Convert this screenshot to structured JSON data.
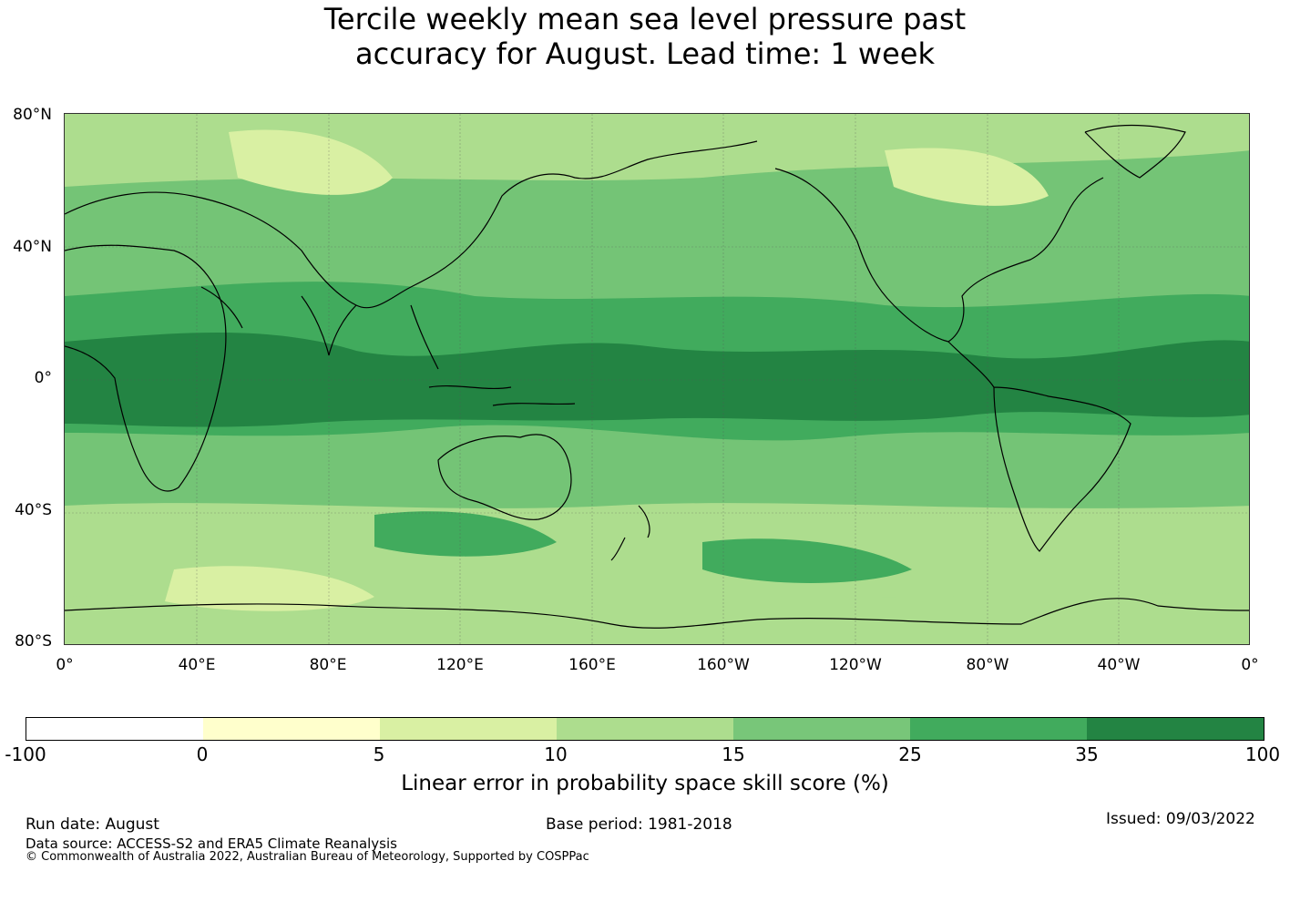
{
  "title": {
    "line1": "Tercile weekly mean sea level pressure past",
    "line2": "accuracy for August. Lead time: 1 week"
  },
  "map": {
    "projection": "equirectangular",
    "extent": {
      "lon_start": "0°",
      "lat_range": [
        -80,
        80
      ]
    },
    "lat_labels": [
      "80°N",
      "40°N",
      "0°",
      "40°S",
      "80°S"
    ],
    "lon_labels": [
      "0°",
      "40°E",
      "80°E",
      "120°E",
      "160°E",
      "160°W",
      "120°W",
      "80°W",
      "40°W",
      "0°"
    ],
    "gridlines": true
  },
  "colorbar": {
    "ticks": [
      "-100",
      "0",
      "5",
      "10",
      "15",
      "25",
      "35",
      "100"
    ],
    "colors": [
      "#ffffff",
      "#ffffcc",
      "#d9f0a3",
      "#addd8e",
      "#78c679",
      "#41ab5d",
      "#238443"
    ],
    "label": "Linear error in probability space skill score (%)"
  },
  "footer": {
    "run_date": "Run date: August",
    "base_period": "Base period: 1981-2018",
    "issued": "Issued: 09/03/2022",
    "data_source": "Data source: ACCESS-S2 and ERA5 Climate Reanalysis",
    "copyright": "© Commonwealth of Australia 2022, Australian Bureau of Meteorology, Supported by COSPPac"
  }
}
